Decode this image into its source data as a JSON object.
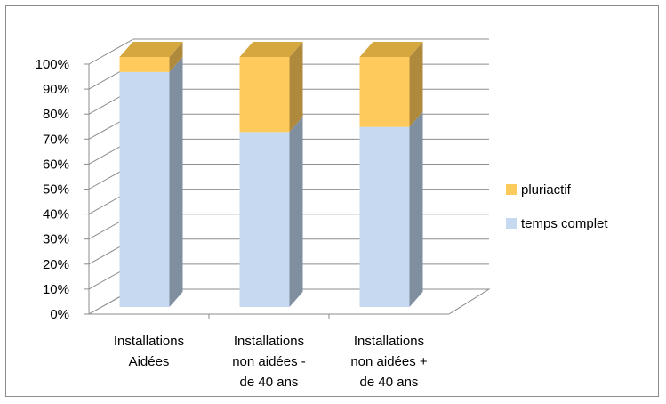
{
  "chart_data": {
    "type": "bar",
    "stacked": true,
    "percent_stacked": true,
    "three_d": true,
    "categories": [
      [
        "Installations",
        "Aidées"
      ],
      [
        "Installations",
        "non aidées -",
        "de 40 ans"
      ],
      [
        "Installations",
        "non aidées +",
        "de 40 ans"
      ]
    ],
    "series": [
      {
        "name": "temps complet",
        "values": [
          94,
          70,
          72
        ],
        "color": "#c6d9f1",
        "side_color": "#7f8fa0"
      },
      {
        "name": "pluriactif",
        "values": [
          6,
          30,
          28
        ],
        "color": "#ffca5c",
        "side_color": "#b08a3c"
      }
    ],
    "y_ticks": [
      "0%",
      "10%",
      "20%",
      "30%",
      "40%",
      "50%",
      "60%",
      "70%",
      "80%",
      "90%",
      "100%"
    ],
    "ylim": [
      0,
      100
    ],
    "grid": true,
    "legend_position": "right",
    "legend_order": [
      "pluriactif",
      "temps complet"
    ],
    "title": "",
    "xlabel": "",
    "ylabel": ""
  }
}
